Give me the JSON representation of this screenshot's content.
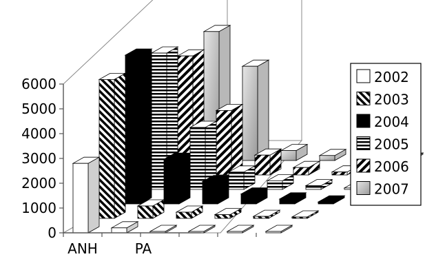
{
  "chart_data": {
    "type": "bar",
    "subtype": "3d-clustered-column",
    "title": "",
    "xlabel": "",
    "ylabel": "",
    "ylim": [
      0,
      6000
    ],
    "yticks": [
      "0",
      "1000",
      "2000",
      "3000",
      "4000",
      "5000",
      "6000"
    ],
    "categories": [
      "ANH",
      "PA",
      "",
      "",
      "",
      ""
    ],
    "series": [
      {
        "name": "2002",
        "pattern": "white",
        "values": [
          2800,
          200,
          50,
          30,
          20,
          10
        ]
      },
      {
        "name": "2003",
        "pattern": "diagonal",
        "values": [
          5600,
          500,
          250,
          150,
          80,
          40
        ]
      },
      {
        "name": "2004",
        "pattern": "black",
        "values": [
          6000,
          1800,
          900,
          400,
          200,
          80
        ]
      },
      {
        "name": "2005",
        "pattern": "horizontal",
        "values": [
          5500,
          2500,
          700,
          350,
          150,
          60
        ]
      },
      {
        "name": "2006",
        "pattern": "backslash",
        "values": [
          4800,
          2600,
          800,
          300,
          120,
          50
        ]
      },
      {
        "name": "2007",
        "pattern": "gray",
        "values": [
          5200,
          3800,
          400,
          200,
          100,
          40
        ]
      }
    ],
    "grid": false,
    "legend": "right"
  },
  "colors": {
    "axis": "#555555",
    "frame": "#888888",
    "floor": "#999999"
  }
}
